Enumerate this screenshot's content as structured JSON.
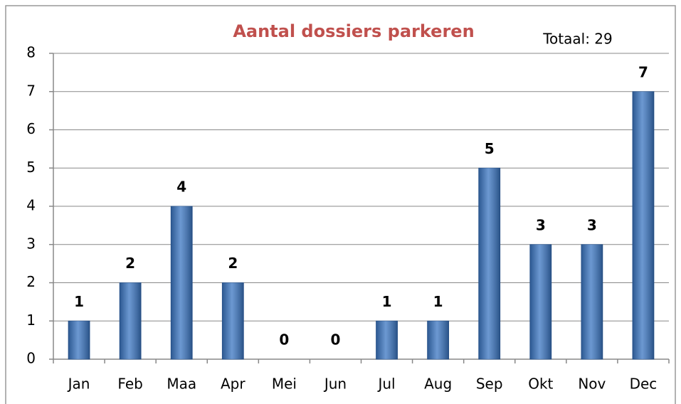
{
  "chart_data": {
    "type": "bar",
    "title": "Aantal dossiers parkeren",
    "annotation": "Totaal: 29",
    "categories": [
      "Jan",
      "Feb",
      "Maa",
      "Apr",
      "Mei",
      "Jun",
      "Jul",
      "Aug",
      "Sep",
      "Okt",
      "Nov",
      "Dec"
    ],
    "values": [
      1,
      2,
      4,
      2,
      0,
      0,
      1,
      1,
      5,
      3,
      3,
      7
    ],
    "color": "#3b76c2",
    "ylim": [
      0,
      8
    ],
    "yticks": [
      0,
      1,
      2,
      3,
      4,
      5,
      6,
      7,
      8
    ],
    "grid": true
  }
}
